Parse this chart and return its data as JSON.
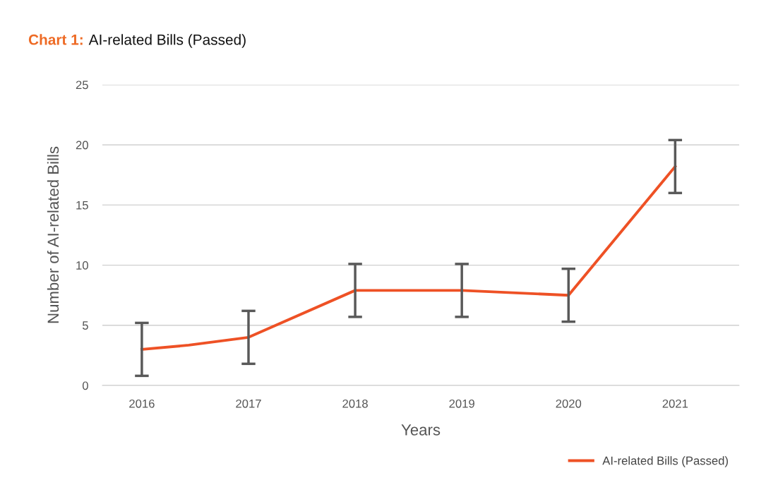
{
  "chart_data": {
    "type": "line",
    "title": "Chart 1:",
    "subtitle": "AI-related Bills (Passed)",
    "xlabel": "Years",
    "ylabel": "Number of AI-related Bills",
    "x": [
      2016,
      2016.44,
      2017,
      2018,
      2019,
      2020,
      2021
    ],
    "series": [
      {
        "name": "AI-related Bills (Passed)",
        "color": "#ee5125",
        "values": [
          3,
          3.35,
          4,
          7.9,
          7.9,
          7.5,
          18.2
        ],
        "errors": [
          2.2,
          null,
          2.2,
          2.2,
          2.2,
          2.2,
          2.2
        ]
      }
    ],
    "xlim": [
      2015.63,
      2021.6
    ],
    "xticks": [
      2016,
      2017,
      2018,
      2019,
      2020,
      2021
    ],
    "ylim": [
      0,
      25
    ],
    "yticks": [
      0,
      5,
      10,
      15,
      20,
      25
    ],
    "grid": "y",
    "legend": "bottom right",
    "marker": "none",
    "line_style": "solid"
  }
}
